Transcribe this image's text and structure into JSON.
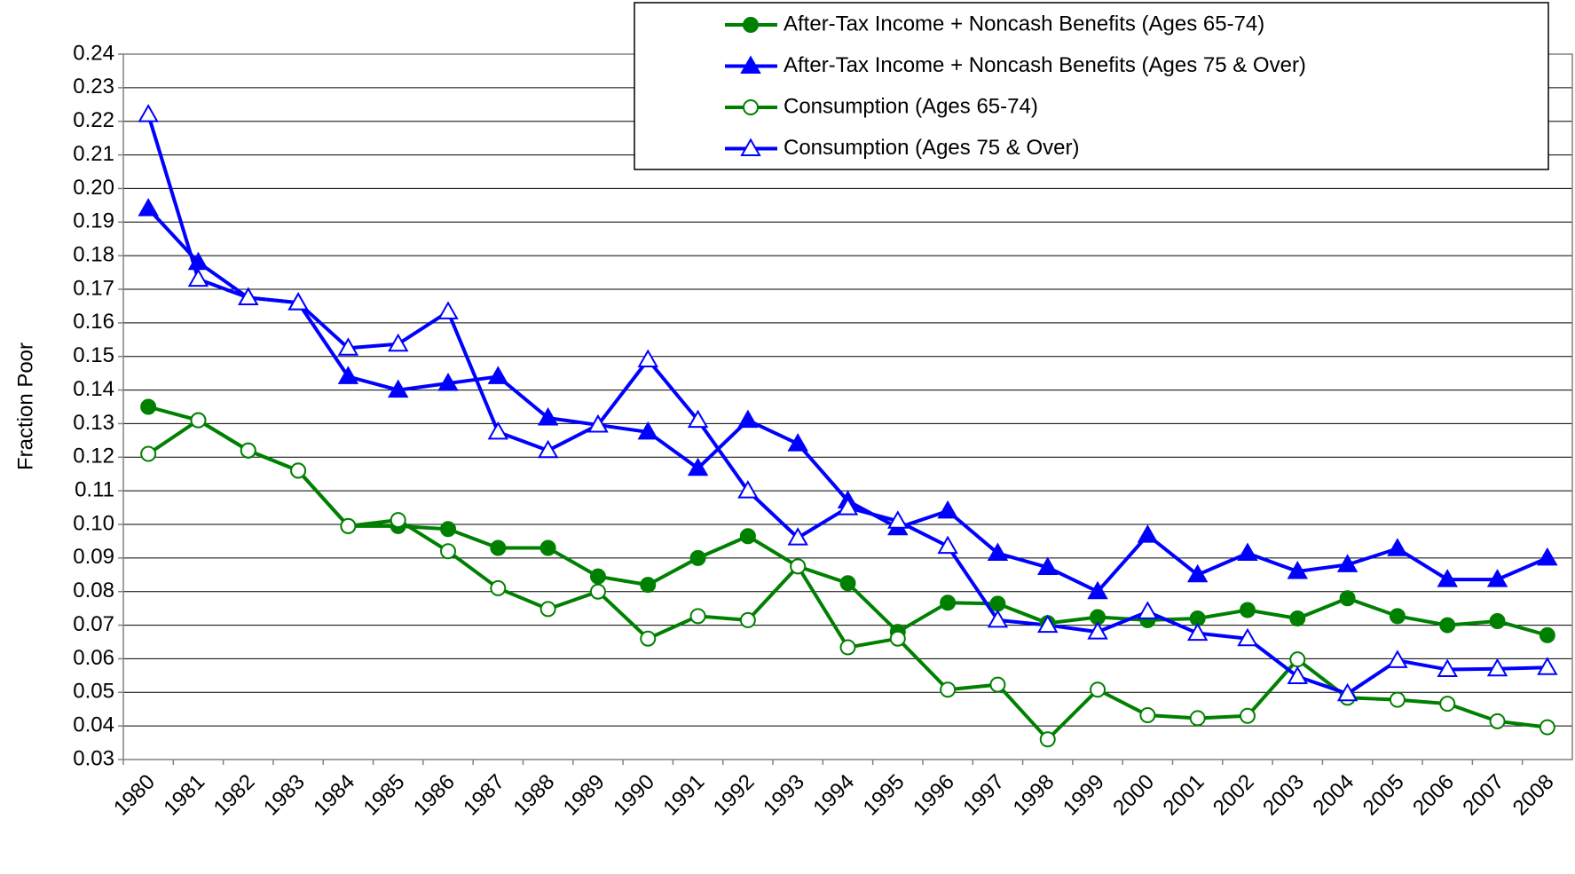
{
  "chart_data": {
    "type": "line",
    "y_label": "Fraction Poor",
    "categories": [
      "1980",
      "1981",
      "1982",
      "1983",
      "1984",
      "1985",
      "1986",
      "1987",
      "1988",
      "1989",
      "1990",
      "1991",
      "1992",
      "1993",
      "1994",
      "1995",
      "1996",
      "1997",
      "1998",
      "1999",
      "2000",
      "2001",
      "2002",
      "2003",
      "2004",
      "2005",
      "2006",
      "2007",
      "2008"
    ],
    "series": [
      {
        "name": "After-Tax Income + Noncash Benefits (Ages 65-74)",
        "color": "#008000",
        "marker": "circle",
        "filled": true,
        "values": [
          0.135,
          0.131,
          0.122,
          0.116,
          0.0995,
          0.0995,
          0.0986,
          0.093,
          0.093,
          0.0845,
          0.082,
          0.09,
          0.0965,
          0.0875,
          0.0825,
          0.068,
          0.0767,
          0.0764,
          0.0706,
          0.0724,
          0.0715,
          0.072,
          0.0745,
          0.072,
          0.078,
          0.0727,
          0.07,
          0.0712,
          0.067
        ]
      },
      {
        "name": "After-Tax Income + Noncash Benefits (Ages 75 & Over)",
        "color": "#0000ff",
        "marker": "triangle",
        "filled": true,
        "values": [
          0.194,
          0.178,
          0.1675,
          0.166,
          0.144,
          0.14,
          0.142,
          0.144,
          0.1317,
          0.1296,
          0.1275,
          0.1167,
          0.131,
          0.124,
          0.107,
          0.099,
          0.104,
          0.0914,
          0.0872,
          0.08,
          0.0968,
          0.085,
          0.0914,
          0.086,
          0.088,
          0.0928,
          0.0836,
          0.0836,
          0.09
        ]
      },
      {
        "name": "Consumption (Ages 65-74)",
        "color": "#008000",
        "marker": "circle",
        "filled": false,
        "values": [
          0.121,
          0.131,
          0.122,
          0.116,
          0.0995,
          0.1013,
          0.092,
          0.081,
          0.0748,
          0.08,
          0.066,
          0.0727,
          0.0715,
          0.0875,
          0.0634,
          0.066,
          0.0508,
          0.0523,
          0.036,
          0.0508,
          0.0432,
          0.0423,
          0.043,
          0.0598,
          0.0484,
          0.0478,
          0.0466,
          0.0414,
          0.0396
        ]
      },
      {
        "name": "Consumption (Ages 75 & Over)",
        "color": "#0000ff",
        "marker": "triangle",
        "filled": false,
        "values": [
          0.222,
          0.173,
          0.1675,
          0.166,
          0.1525,
          0.1537,
          0.1633,
          0.1275,
          0.122,
          0.1296,
          0.149,
          0.131,
          0.11,
          0.096,
          0.105,
          0.101,
          0.0935,
          0.0715,
          0.07,
          0.068,
          0.074,
          0.0676,
          0.066,
          0.0547,
          0.0496,
          0.0595,
          0.0568,
          0.057,
          0.0574
        ]
      }
    ],
    "ylim": [
      0.03,
      0.24
    ],
    "yticks": [
      0.03,
      0.04,
      0.05,
      0.06,
      0.07,
      0.08,
      0.09,
      {
        "value": 0.1,
        "label": "0.10"
      },
      0.11,
      0.12,
      0.13,
      0.14,
      0.15,
      0.16,
      0.17,
      0.18,
      0.19,
      {
        "value": 0.2,
        "label": "0.20"
      },
      0.21,
      0.22,
      0.23,
      0.24
    ],
    "grid": true,
    "legend": "upper right"
  }
}
